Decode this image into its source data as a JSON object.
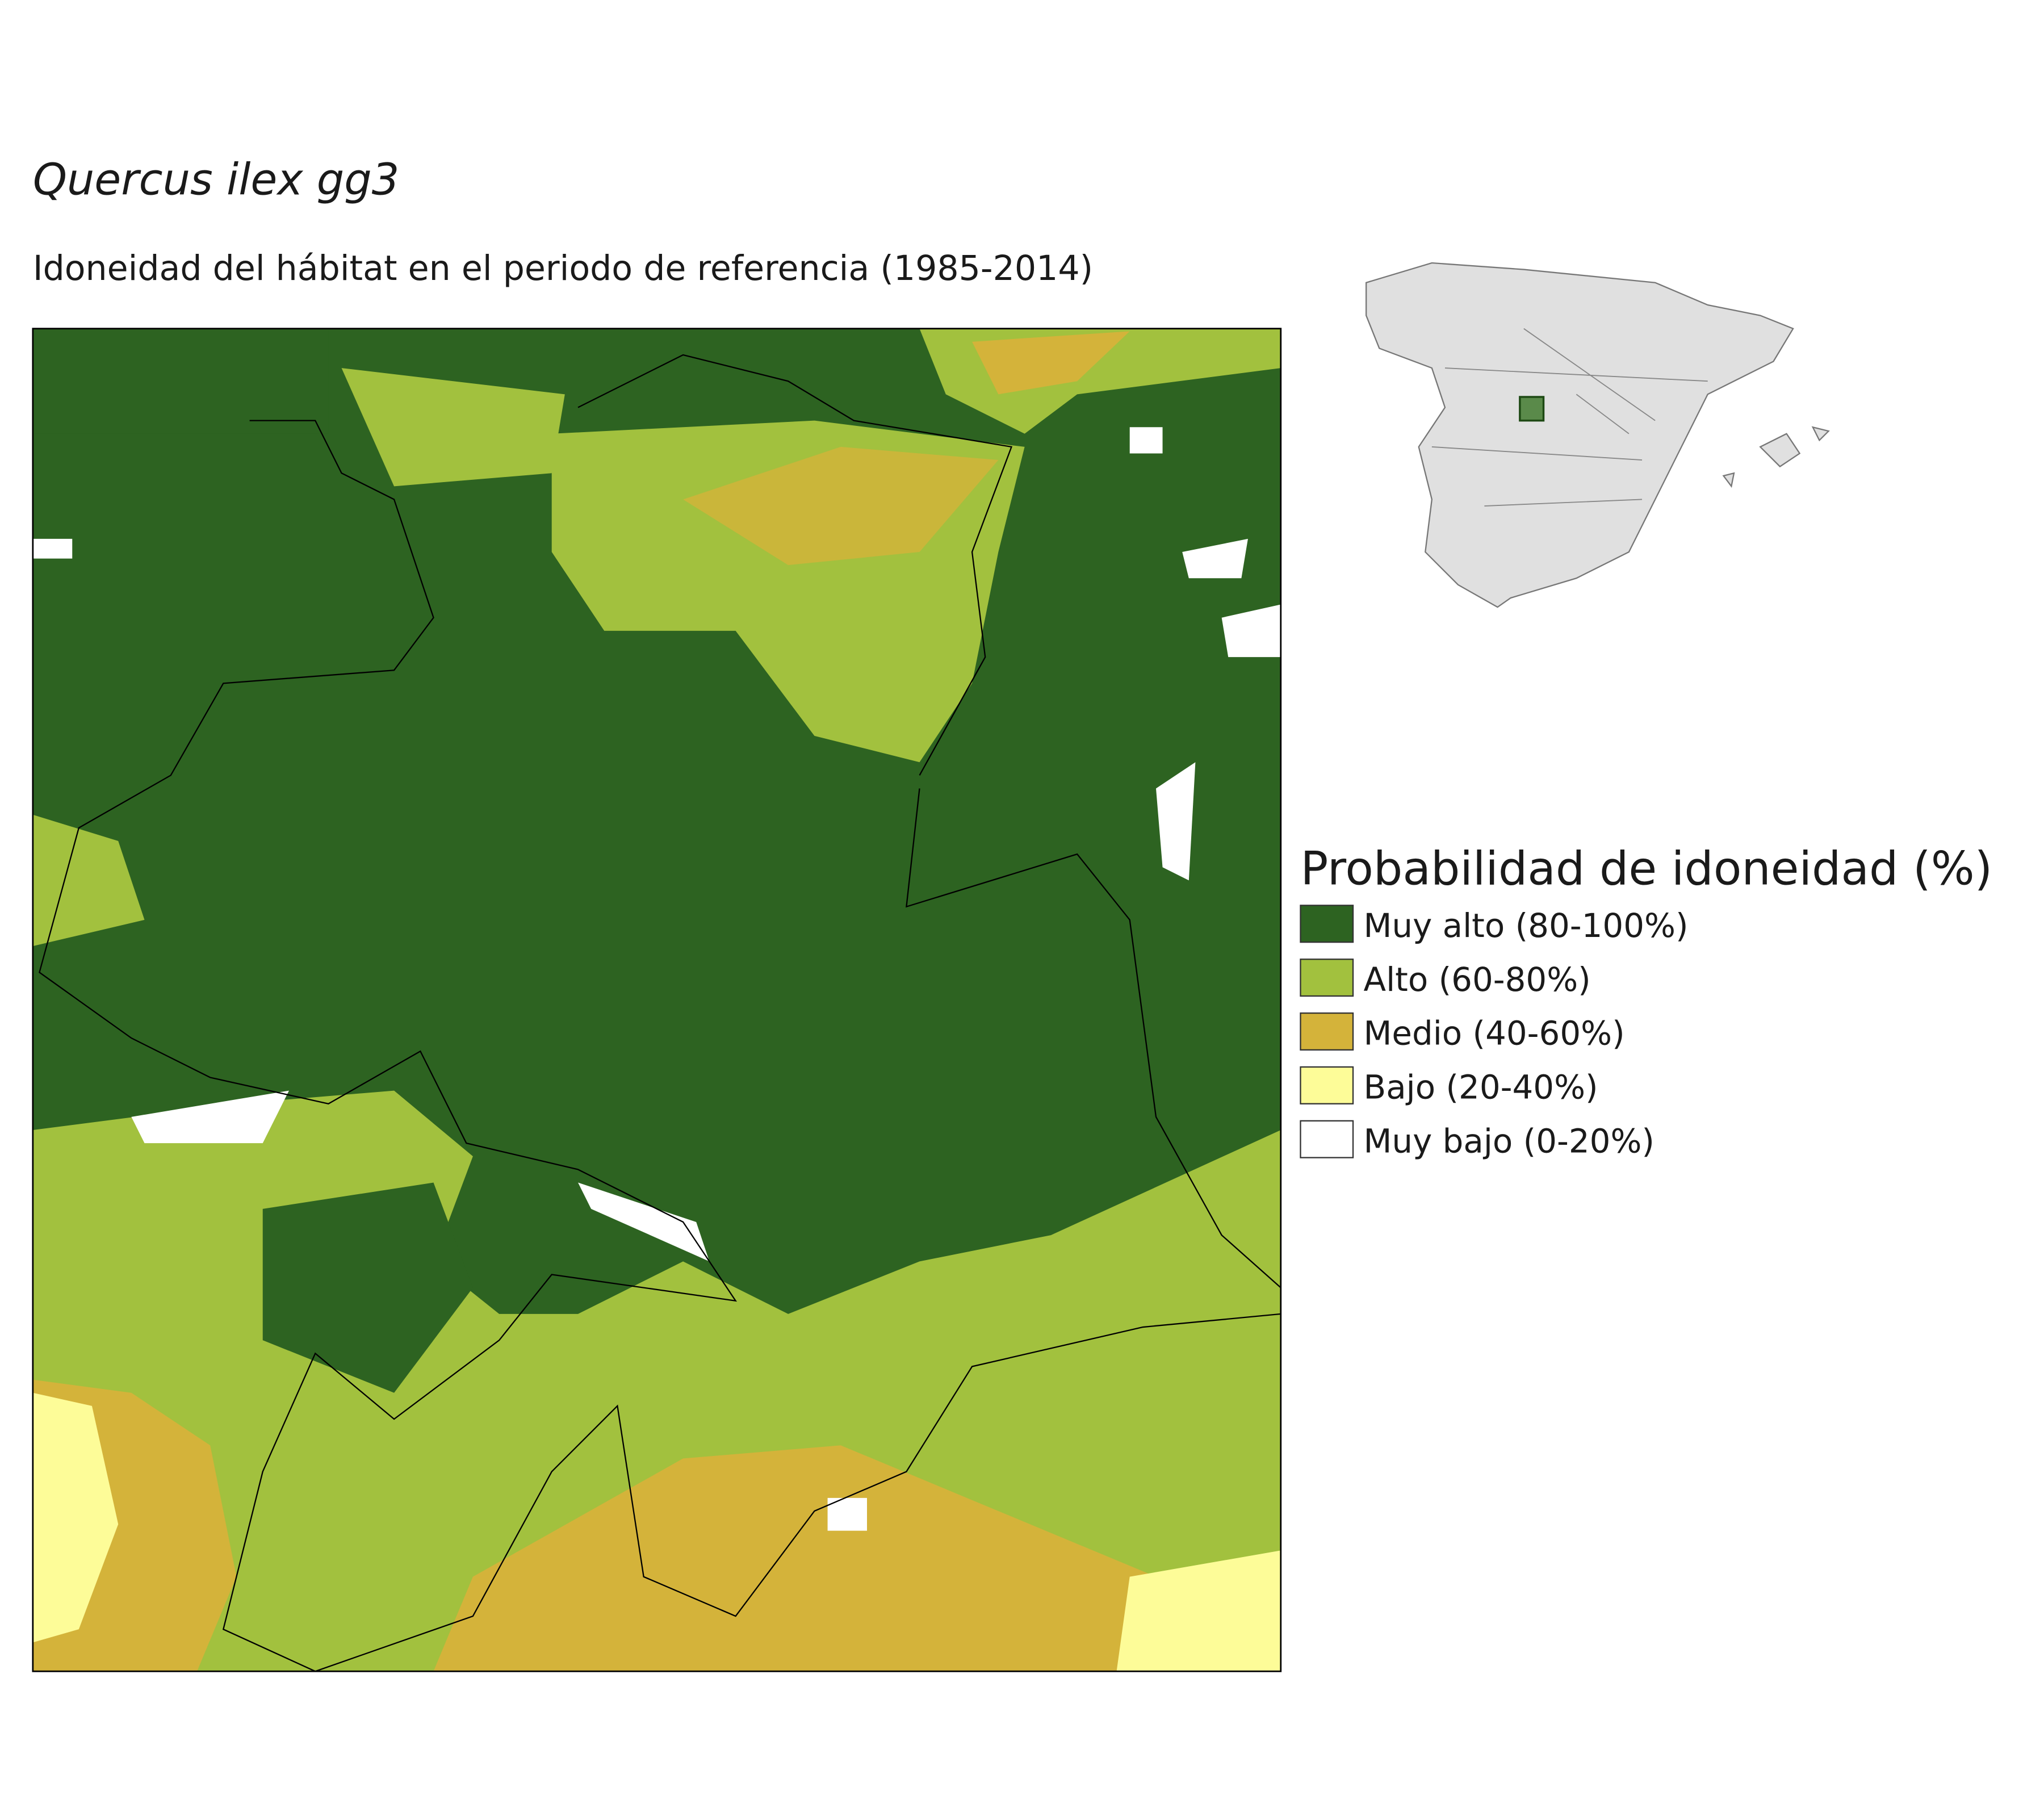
{
  "title": "Quercus ilex gg3",
  "subtitle": "Idoneidad del hábitat en el periodo de referencia (1985-2014)",
  "legend": {
    "title": "Probabilidad de idoneidad (%)",
    "items": [
      {
        "label": "Muy alto (80-100%)",
        "color": "#2d6321"
      },
      {
        "label": "Alto (60-80%)",
        "color": "#a2c13e"
      },
      {
        "label": "Medio (40-60%)",
        "color": "#d4b33a"
      },
      {
        "label": "Bajo (20-40%)",
        "color": "#fdfc98"
      },
      {
        "label": "Muy bajo (0-20%)",
        "color": "#ffffff"
      }
    ]
  }
}
